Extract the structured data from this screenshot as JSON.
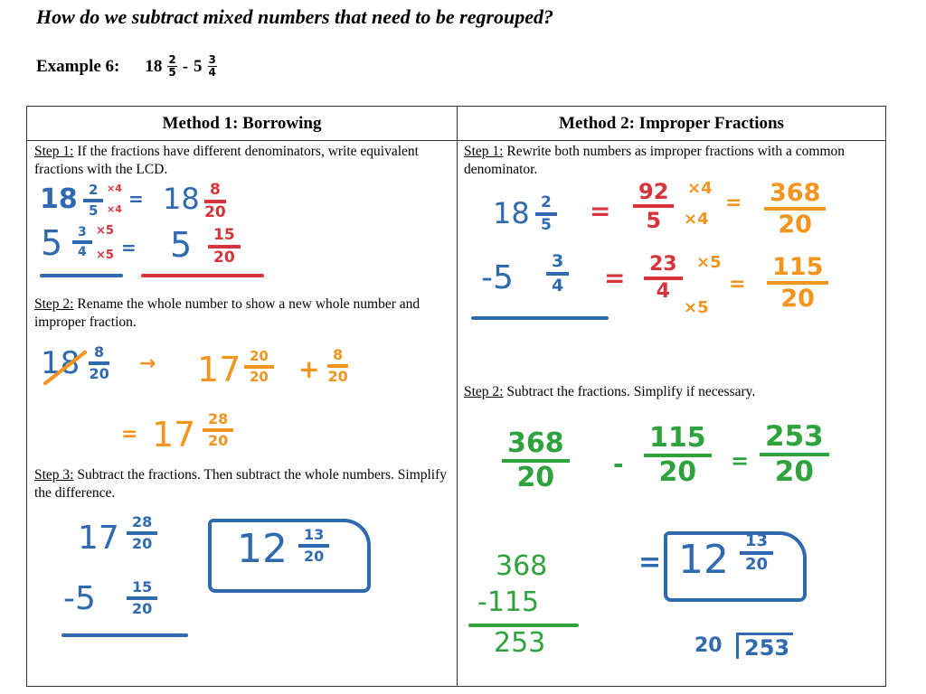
{
  "title": "How do we subtract mixed numbers that need to be regrouped?",
  "example": {
    "label": "Example 6:",
    "a_whole": "18",
    "a_num": "2",
    "a_den": "5",
    "op": "-",
    "b_whole": "5",
    "b_num": "3",
    "b_den": "4"
  },
  "method1": {
    "header": "Method 1: Borrowing",
    "step1_label": "Step 1:",
    "step1_text": " If the fractions have different denominators, write equivalent fractions with the LCD.",
    "step2_label": "Step 2:",
    "step2_text": " Rename the whole number to show a new whole number and improper fraction.",
    "step3_label": "Step 3:",
    "step3_text": " Subtract the fractions. Then subtract the whole numbers. Simplify the difference.",
    "work": {
      "r1_whole": "18",
      "r1_num": "2",
      "r1_den": "5",
      "r1_mult_top": "×4",
      "r1_mult_bot": "×4",
      "r1_eq": "=",
      "r1_whole2": "18",
      "r1_num2": "8",
      "r1_den2": "20",
      "r2_whole": "5",
      "r2_num": "3",
      "r2_den": "4",
      "r2_mult_top": "×5",
      "r2_mult_bot": "×5",
      "r2_eq": "=",
      "r2_whole2": "5",
      "r2_num2": "15",
      "r2_den2": "20",
      "s2_whole": "18",
      "s2_num": "8",
      "s2_den": "20",
      "s2_arrow": "→",
      "s2_new_whole": "17",
      "s2_num_a": "20",
      "s2_den_a": "20",
      "s2_plus": "+",
      "s2_num_b": "8",
      "s2_den_b": "20",
      "s2_eq": "=",
      "s2_result_whole": "17",
      "s2_result_num": "28",
      "s2_result_den": "20",
      "s3_whole1": "17",
      "s3_num1": "28",
      "s3_den1": "20",
      "s3_whole2": "-5",
      "s3_num2": "15",
      "s3_den2": "20",
      "s3_answer_whole": "12",
      "s3_answer_num": "13",
      "s3_answer_den": "20"
    }
  },
  "method2": {
    "header": "Method 2: Improper Fractions",
    "step1_label": "Step 1:",
    "step1_text": " Rewrite both numbers as improper fractions with a common denominator.",
    "step2_label": "Step 2:",
    "step2_text": " Subtract the fractions. Simplify if necessary.",
    "work": {
      "r1_whole": "18",
      "r1_num": "2",
      "r1_den": "5",
      "r1_eq": "=",
      "r1_imp_num": "92",
      "r1_imp_den": "5",
      "r1_mult_top": "×4",
      "r1_mult_bot": "×4",
      "r1_eq2": "=",
      "r1_lcd_num": "368",
      "r1_lcd_den": "20",
      "r2_whole": "-5",
      "r2_num": "3",
      "r2_den": "4",
      "r2_eq": "=",
      "r2_imp_num": "23",
      "r2_imp_den": "4",
      "r2_mult_top": "×5",
      "r2_mult_bot": "×5",
      "r2_eq2": "=",
      "r2_lcd_num": "115",
      "r2_lcd_den": "20",
      "sub_num1": "368",
      "sub_den1": "20",
      "sub_minus": "-",
      "sub_num2": "115",
      "sub_den2": "20",
      "sub_eq": "=",
      "sub_res_num": "253",
      "sub_res_den": "20",
      "col_top": "368",
      "col_mid": "-115",
      "col_bot": "253",
      "ans_eq": "=",
      "ans_whole": "12",
      "ans_num": "13",
      "ans_den": "20",
      "div_divisor": "20",
      "div_dividend": "253"
    }
  },
  "colors": {
    "blue": "#2f69b0",
    "red": "#d6333b",
    "orange": "#f3941f",
    "green": "#2ea23c"
  }
}
